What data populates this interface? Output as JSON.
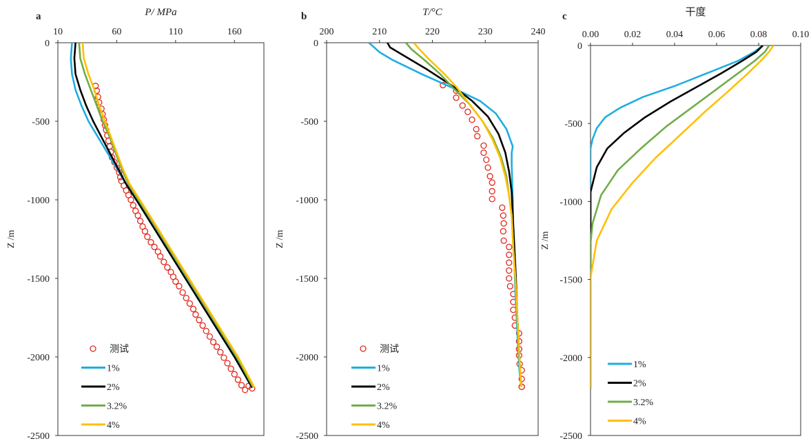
{
  "chart_data": [
    {
      "panel_label": "a",
      "type": "line",
      "xlabel": "P/ MPa",
      "ylabel": "Z /m",
      "xlim": [
        10,
        185
      ],
      "ylim": [
        -2500,
        0
      ],
      "x_axis_position": "top",
      "xticks": [
        10,
        60,
        110,
        160
      ],
      "yticks": [
        0,
        -500,
        -1000,
        -1500,
        -2000,
        -2500
      ],
      "grid": false,
      "legend_position": "bottom-left",
      "series": [
        {
          "name": "测试",
          "kind": "markers",
          "color": "#e0281e",
          "x": [
            42,
            43,
            44,
            45,
            47,
            48,
            49,
            50,
            51,
            52,
            53,
            54,
            55,
            56,
            58,
            60,
            62,
            63,
            64,
            66,
            68,
            70,
            72,
            74,
            76,
            78,
            80,
            82,
            84,
            86,
            89,
            92,
            95,
            97,
            100,
            103,
            106,
            108,
            110,
            113,
            116,
            119,
            122,
            125,
            127,
            130,
            133,
            136,
            139,
            142,
            145,
            148,
            151,
            154,
            157,
            160,
            163,
            166,
            169,
            172,
            175
          ],
          "y": [
            -275,
            -305,
            -345,
            -380,
            -420,
            -455,
            -490,
            -525,
            -555,
            -590,
            -625,
            -660,
            -695,
            -730,
            -760,
            -795,
            -825,
            -855,
            -880,
            -910,
            -940,
            -970,
            -1000,
            -1035,
            -1070,
            -1100,
            -1135,
            -1170,
            -1200,
            -1235,
            -1270,
            -1300,
            -1330,
            -1360,
            -1395,
            -1430,
            -1460,
            -1490,
            -1520,
            -1550,
            -1590,
            -1625,
            -1660,
            -1695,
            -1730,
            -1765,
            -1800,
            -1835,
            -1870,
            -1905,
            -1935,
            -1970,
            -2005,
            -2040,
            -2075,
            -2110,
            -2145,
            -2180,
            -2210,
            -2185,
            -2200
          ]
        },
        {
          "name": "1%",
          "kind": "line",
          "color": "#1eaee0",
          "x": [
            22,
            21,
            22,
            25,
            30,
            36,
            44,
            52,
            60,
            68,
            80,
            100,
            120,
            140,
            160,
            175
          ],
          "y": [
            0,
            -100,
            -200,
            -300,
            -400,
            -500,
            -600,
            -700,
            -800,
            -900,
            -1040,
            -1280,
            -1520,
            -1760,
            -2000,
            -2195
          ]
        },
        {
          "name": "2%",
          "kind": "line",
          "color": "#000000",
          "x": [
            25,
            24,
            25,
            29,
            34,
            40,
            47,
            54,
            61,
            68,
            80,
            100,
            120,
            140,
            160,
            175
          ],
          "y": [
            0,
            -100,
            -200,
            -300,
            -400,
            -500,
            -600,
            -700,
            -800,
            -900,
            -1040,
            -1280,
            -1520,
            -1760,
            -2000,
            -2195
          ]
        },
        {
          "name": "3.2%",
          "kind": "line",
          "color": "#70ad47",
          "x": [
            28,
            29,
            33,
            38,
            43,
            48,
            54,
            59,
            64,
            70,
            82,
            102,
            122,
            142,
            162,
            176
          ],
          "y": [
            0,
            -100,
            -200,
            -300,
            -400,
            -500,
            -600,
            -700,
            -800,
            -900,
            -1040,
            -1280,
            -1520,
            -1760,
            -2000,
            -2195
          ]
        },
        {
          "name": "4%",
          "kind": "line",
          "color": "#ffc000",
          "x": [
            31,
            32,
            36,
            41,
            45,
            50,
            55,
            60,
            65,
            71,
            83,
            103,
            123,
            143,
            163,
            177
          ],
          "y": [
            0,
            -100,
            -200,
            -300,
            -400,
            -500,
            -600,
            -700,
            -800,
            -900,
            -1040,
            -1280,
            -1520,
            -1760,
            -2000,
            -2195
          ]
        }
      ]
    },
    {
      "panel_label": "b",
      "type": "line",
      "xlabel": "T/°C",
      "ylabel": "Z /m",
      "xlim": [
        200,
        240
      ],
      "ylim": [
        -2500,
        0
      ],
      "x_axis_position": "top",
      "xticks": [
        200,
        210,
        220,
        230,
        240
      ],
      "yticks": [
        0,
        -500,
        -1000,
        -1500,
        -2000,
        -2500
      ],
      "grid": false,
      "legend_position": "bottom-left",
      "series": [
        {
          "name": "测试",
          "kind": "markers",
          "color": "#e0281e",
          "x": [
            222.0,
            224.5,
            224.5,
            225.7,
            226.7,
            227.5,
            228.3,
            228.5,
            229.7,
            229.7,
            230.2,
            230.5,
            230.9,
            231.3,
            231.3,
            231.3,
            233.2,
            233.4,
            233.5,
            233.4,
            233.5,
            234.5,
            234.5,
            234.5,
            234.5,
            234.5,
            234.7,
            235.3,
            235.3,
            235.3,
            235.6,
            235.6,
            236.4,
            236.4,
            236.4,
            236.4,
            236.5,
            236.9,
            236.9,
            236.9,
            236.9
          ],
          "y": [
            -270,
            -305,
            -350,
            -400,
            -440,
            -490,
            -550,
            -595,
            -655,
            -700,
            -745,
            -795,
            -850,
            -890,
            -945,
            -995,
            -1050,
            -1100,
            -1150,
            -1200,
            -1260,
            -1300,
            -1350,
            -1400,
            -1450,
            -1500,
            -1550,
            -1600,
            -1650,
            -1700,
            -1750,
            -1800,
            -1850,
            -1900,
            -1950,
            -1990,
            -2045,
            -2085,
            -2140,
            -2190,
            -2190
          ]
        },
        {
          "name": "1%",
          "kind": "line",
          "color": "#1eaee0",
          "x": [
            208.0,
            210.0,
            212.5,
            218.0,
            224.0,
            229.0,
            232.0,
            234.0,
            235.2,
            235.0,
            235.0,
            235.2,
            235.3,
            235.5,
            235.7,
            236.0,
            236.3,
            236.5,
            236.8
          ],
          "y": [
            0,
            -60,
            -110,
            -200,
            -290,
            -370,
            -450,
            -550,
            -660,
            -700,
            -780,
            -1000,
            -1200,
            -1400,
            -1600,
            -1800,
            -2000,
            -2100,
            -2190
          ]
        },
        {
          "name": "2%",
          "kind": "line",
          "color": "#000000",
          "x": [
            211.5,
            212.0,
            214.5,
            219.0,
            224.0,
            227.5,
            230.5,
            232.5,
            233.8,
            234.5,
            235.0,
            235.2,
            235.5,
            235.8,
            236.0,
            236.3,
            236.6,
            236.8
          ],
          "y": [
            0,
            -30,
            -80,
            -170,
            -280,
            -370,
            -470,
            -580,
            -700,
            -820,
            -950,
            -1100,
            -1300,
            -1500,
            -1700,
            -1900,
            -2100,
            -2190
          ]
        },
        {
          "name": "3.2%",
          "kind": "line",
          "color": "#70ad47",
          "x": [
            215.0,
            216.0,
            218.5,
            221.5,
            224.0,
            227.0,
            229.5,
            231.5,
            233.0,
            234.0,
            234.5,
            235.0,
            235.3,
            235.7,
            236.0,
            236.3,
            236.6,
            236.8
          ],
          "y": [
            0,
            -40,
            -110,
            -200,
            -290,
            -390,
            -500,
            -610,
            -730,
            -850,
            -970,
            -1100,
            -1300,
            -1500,
            -1700,
            -1900,
            -2100,
            -2190
          ]
        },
        {
          "name": "4%",
          "kind": "line",
          "color": "#ffc000",
          "x": [
            216.5,
            217.5,
            219.5,
            222.0,
            224.5,
            227.0,
            229.5,
            231.3,
            232.8,
            233.8,
            234.5,
            235.0,
            235.3,
            235.7,
            236.0,
            236.3,
            236.6,
            236.8
          ],
          "y": [
            0,
            -40,
            -110,
            -190,
            -280,
            -390,
            -500,
            -610,
            -730,
            -850,
            -970,
            -1100,
            -1300,
            -1500,
            -1700,
            -1900,
            -2100,
            -2190
          ]
        }
      ]
    },
    {
      "panel_label": "c",
      "type": "line",
      "xlabel": "干度",
      "ylabel": "Z /m",
      "xlim": [
        0,
        0.1
      ],
      "ylim": [
        -2500,
        0
      ],
      "x_axis_position": "top",
      "xticks": [
        0.0,
        0.02,
        0.04,
        0.06,
        0.08,
        0.1
      ],
      "xtick_labels": [
        "0.00",
        "0.02",
        "0.04",
        "0.06",
        "0.08",
        "0.10"
      ],
      "yticks": [
        0,
        -500,
        -1000,
        -1500,
        -2000,
        -2500
      ],
      "grid": false,
      "legend_position": "bottom-left",
      "series": [
        {
          "name": "1%",
          "kind": "line",
          "color": "#1eaee0",
          "x": [
            0.082,
            0.078,
            0.07,
            0.055,
            0.04,
            0.025,
            0.014,
            0.007,
            0.003,
            0.001,
            0.0,
            0.0
          ],
          "y": [
            0,
            -40,
            -100,
            -180,
            -260,
            -330,
            -400,
            -460,
            -530,
            -600,
            -660,
            -2200
          ]
        },
        {
          "name": "2%",
          "kind": "line",
          "color": "#000000",
          "x": [
            0.082,
            0.079,
            0.072,
            0.062,
            0.05,
            0.038,
            0.026,
            0.016,
            0.008,
            0.003,
            0.0,
            0.0
          ],
          "y": [
            0,
            -40,
            -100,
            -180,
            -270,
            -360,
            -460,
            -560,
            -660,
            -780,
            -940,
            -2200
          ]
        },
        {
          "name": "3.2%",
          "kind": "line",
          "color": "#70ad47",
          "x": [
            0.085,
            0.083,
            0.078,
            0.07,
            0.06,
            0.048,
            0.036,
            0.024,
            0.013,
            0.005,
            0.001,
            0.0,
            0.0
          ],
          "y": [
            0,
            -40,
            -100,
            -180,
            -280,
            -400,
            -520,
            -660,
            -800,
            -960,
            -1140,
            -1270,
            -2200
          ]
        },
        {
          "name": "4%",
          "kind": "line",
          "color": "#ffc000",
          "x": [
            0.087,
            0.085,
            0.081,
            0.074,
            0.065,
            0.054,
            0.043,
            0.031,
            0.02,
            0.01,
            0.003,
            0.0,
            0.0
          ],
          "y": [
            0,
            -40,
            -100,
            -190,
            -300,
            -430,
            -570,
            -720,
            -880,
            -1050,
            -1250,
            -1490,
            -2200
          ]
        }
      ]
    }
  ]
}
